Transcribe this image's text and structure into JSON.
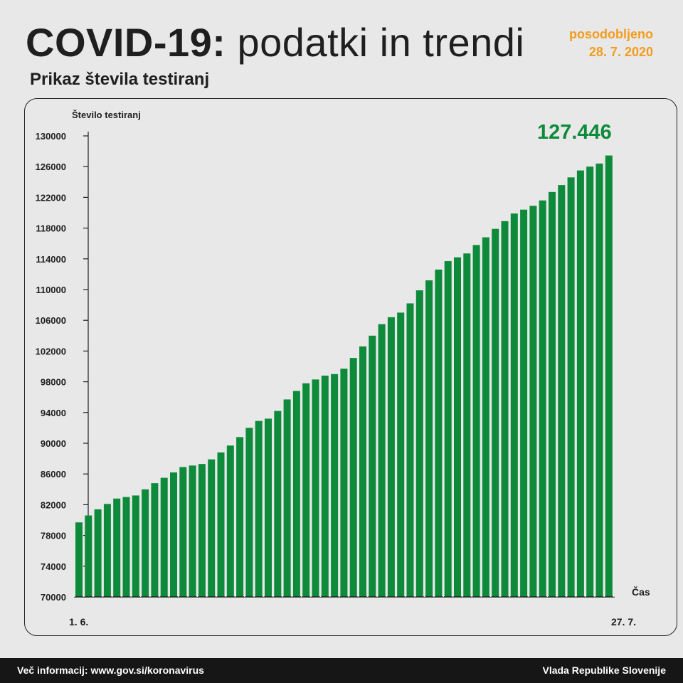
{
  "header": {
    "title_bold": "COVID-19:",
    "title_rest": "podatki in trendi",
    "updated_label": "posodobljeno",
    "updated_date": "28. 7. 2020",
    "subtitle": "Prikaz števila testiranj"
  },
  "chart_data": {
    "type": "bar",
    "ylabel": "Število testiranj",
    "xlabel": "Čas",
    "ylim": [
      70000,
      130000
    ],
    "yticks": [
      "130000",
      "126000",
      "122000",
      "118000",
      "114000",
      "110000",
      "106000",
      "102000",
      "98000",
      "94000",
      "90000",
      "86000",
      "82000",
      "78000",
      "74000",
      "70000"
    ],
    "x_start_label": "1. 6.",
    "x_end_label": "27. 7.",
    "highlight_value": "127.446",
    "color": "#0e8a3b",
    "values": [
      79700,
      80600,
      81400,
      82100,
      82800,
      83000,
      83200,
      84000,
      84800,
      85500,
      86200,
      86900,
      87100,
      87300,
      87900,
      88800,
      89700,
      90800,
      92000,
      92900,
      93200,
      94200,
      95700,
      96800,
      97800,
      98300,
      98800,
      99000,
      99700,
      101100,
      102600,
      104000,
      105500,
      106400,
      107000,
      108200,
      109900,
      111200,
      112600,
      113700,
      114200,
      114700,
      115800,
      116800,
      117900,
      118900,
      119900,
      120400,
      120900,
      121600,
      122700,
      123600,
      124600,
      125500,
      126000,
      126400,
      127446
    ]
  },
  "footer": {
    "left": "Več informacij: www.gov.si/koronavirus",
    "right": "Vlada Republike Slovenije"
  }
}
